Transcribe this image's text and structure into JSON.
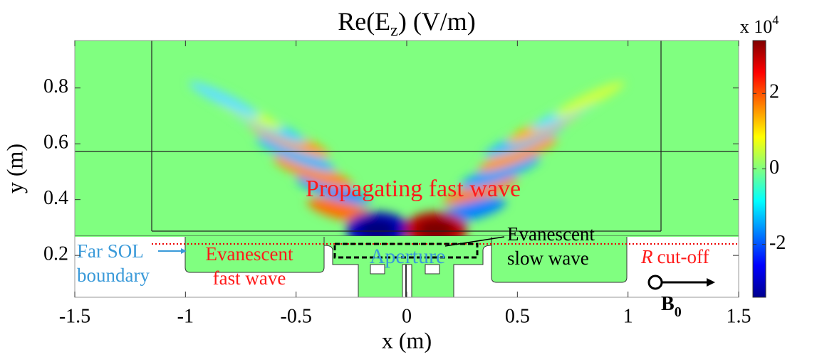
{
  "chart_data": {
    "type": "heatmap",
    "title": {
      "text": "Re(E",
      "subscript": "z",
      "suffix": ") (V/m)"
    },
    "xlabel": "x (m)",
    "ylabel": "y (m)",
    "xlim": [
      -1.5,
      1.5
    ],
    "xticks": [
      -1.5,
      -1,
      -0.5,
      0,
      0.5,
      1,
      1.5
    ],
    "ylim": [
      0.05,
      0.97
    ],
    "yticks": [
      0.2,
      0.4,
      0.6,
      0.8
    ],
    "colormap": "jet",
    "colorbar": {
      "label": "x 10",
      "exponent": "4",
      "lim": [
        -3.4,
        3.4
      ],
      "ticks": [
        -2,
        0,
        2
      ]
    },
    "annotations": [
      {
        "lines": [
          "Propagating fast wave"
        ],
        "color": "#ff1a1a"
      },
      {
        "lines": [
          "Evanescent",
          "slow wave"
        ],
        "color": "#000000"
      },
      {
        "lines": [
          "Evanescent",
          "fast wave"
        ],
        "color": "#ff1a1a"
      },
      {
        "lines": [
          "Far SOL",
          "boundary"
        ],
        "color": "#3a9ad9"
      },
      {
        "lines": [
          "Aperture"
        ],
        "color": "#3a9ad9"
      },
      {
        "symbol": "R",
        "lines": [
          "cut-off"
        ],
        "color": "#ff1a1a"
      },
      {
        "symbol": "B",
        "subscript": "0",
        "color": "#000000"
      }
    ]
  }
}
